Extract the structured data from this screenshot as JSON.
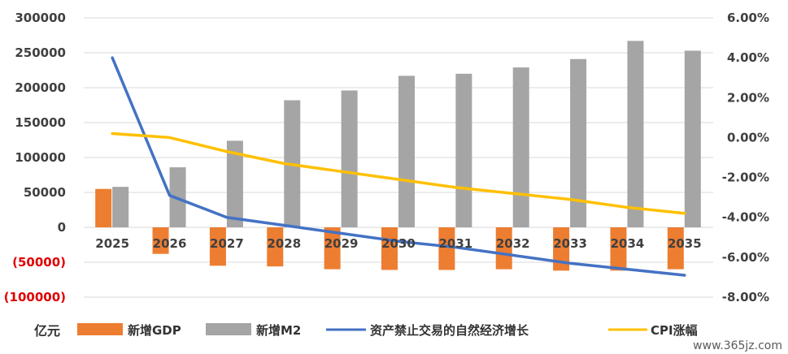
{
  "chart_data": {
    "type": "bar",
    "categories": [
      "2025",
      "2026",
      "2027",
      "2028",
      "2029",
      "2030",
      "2031",
      "2032",
      "2033",
      "2034",
      "2035"
    ],
    "series": [
      {
        "name": "新增GDP",
        "kind": "bar",
        "axis": "left",
        "color": "#ed7d31",
        "values": [
          55000,
          -38000,
          -55000,
          -56000,
          -60000,
          -61000,
          -61000,
          -60000,
          -62000,
          -62000,
          -60000
        ]
      },
      {
        "name": "新增M2",
        "kind": "bar",
        "axis": "left",
        "color": "#a5a5a5",
        "values": [
          58000,
          86000,
          124000,
          182000,
          196000,
          217000,
          220000,
          229000,
          241000,
          267000,
          253000
        ]
      },
      {
        "name": "资产禁止交易的自然经济增长",
        "kind": "line",
        "axis": "right",
        "color": "#4472c4",
        "values": [
          4.0,
          -2.9,
          -4.0,
          -4.4,
          -4.8,
          -5.2,
          -5.5,
          -5.9,
          -6.3,
          -6.6,
          -6.9
        ]
      },
      {
        "name": "CPI涨幅",
        "kind": "line",
        "axis": "right",
        "color": "#ffc000",
        "values": [
          0.2,
          0.0,
          -0.7,
          -1.3,
          -1.7,
          -2.1,
          -2.5,
          -2.8,
          -3.1,
          -3.5,
          -3.8
        ]
      }
    ],
    "y_left": {
      "min": -100000,
      "max": 300000,
      "step": 50000,
      "tick_labels": [
        "(100000)",
        "(50000)",
        "0",
        "50000",
        "100000",
        "150000",
        "200000",
        "250000",
        "300000"
      ]
    },
    "y_right": {
      "min": -8,
      "max": 6,
      "step": 2,
      "tick_labels": [
        "-8.00%",
        "-6.00%",
        "-4.00%",
        "-2.00%",
        "0.00%",
        "2.00%",
        "4.00%",
        "6.00%"
      ]
    },
    "ylabel_left": "亿元",
    "grid": true,
    "legend_position": "bottom"
  },
  "watermark": "www.365jz.com"
}
